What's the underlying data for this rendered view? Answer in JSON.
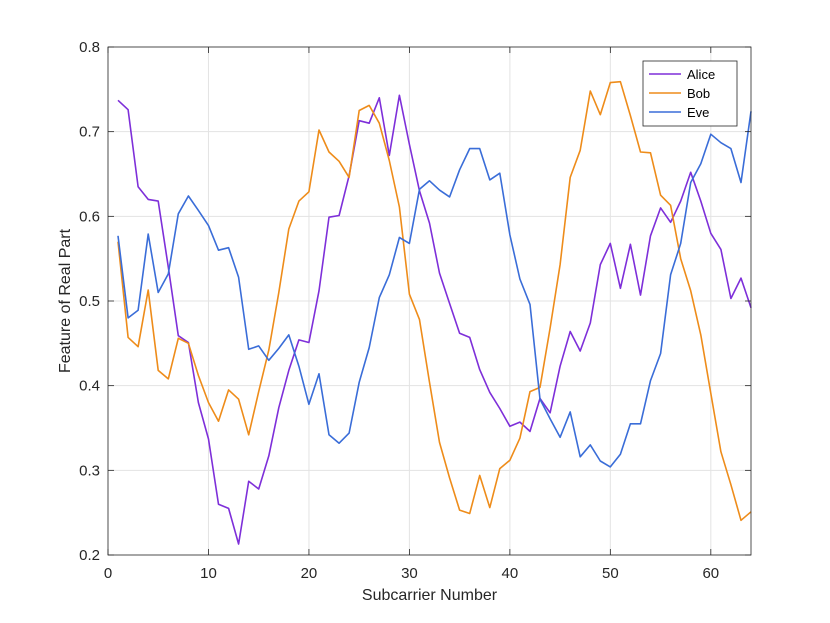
{
  "chart_data": {
    "type": "line",
    "xlabel": "Subcarrier Number",
    "ylabel": "Feature of Real Part",
    "xlim": [
      0,
      64
    ],
    "ylim": [
      0.2,
      0.8
    ],
    "xticks": [
      "0",
      "10",
      "20",
      "30",
      "40",
      "50",
      "60"
    ],
    "yticks": [
      "0.2",
      "0.3",
      "0.4",
      "0.5",
      "0.6",
      "0.7",
      "0.8"
    ],
    "grid": true,
    "legend_position": "top-right",
    "x": [
      1,
      2,
      3,
      4,
      5,
      6,
      7,
      8,
      9,
      10,
      11,
      12,
      13,
      14,
      15,
      16,
      17,
      18,
      19,
      20,
      21,
      22,
      23,
      24,
      25,
      26,
      27,
      28,
      29,
      30,
      31,
      32,
      33,
      34,
      35,
      36,
      37,
      38,
      39,
      40,
      41,
      42,
      43,
      44,
      45,
      46,
      47,
      48,
      49,
      50,
      51,
      52,
      53,
      54,
      55,
      56,
      57,
      58,
      59,
      60,
      61,
      62,
      63,
      64
    ],
    "series": [
      {
        "name": "Alice",
        "color": "#7E2FD9",
        "values": [
          0.737,
          0.726,
          0.635,
          0.62,
          0.618,
          0.54,
          0.459,
          0.451,
          0.38,
          0.337,
          0.26,
          0.255,
          0.213,
          0.287,
          0.278,
          0.317,
          0.374,
          0.418,
          0.454,
          0.451,
          0.512,
          0.599,
          0.601,
          0.648,
          0.713,
          0.71,
          0.74,
          0.672,
          0.743,
          0.685,
          0.63,
          0.592,
          0.533,
          0.497,
          0.462,
          0.457,
          0.419,
          0.392,
          0.373,
          0.352,
          0.357,
          0.346,
          0.385,
          0.368,
          0.423,
          0.464,
          0.441,
          0.474,
          0.543,
          0.568,
          0.515,
          0.567,
          0.507,
          0.577,
          0.61,
          0.593,
          0.618,
          0.652,
          0.618,
          0.58,
          0.561,
          0.503,
          0.527,
          0.492
        ]
      },
      {
        "name": "Bob",
        "color": "#EE8C1A",
        "values": [
          0.57,
          0.457,
          0.446,
          0.513,
          0.418,
          0.408,
          0.456,
          0.45,
          0.412,
          0.38,
          0.358,
          0.395,
          0.384,
          0.342,
          0.393,
          0.442,
          0.51,
          0.585,
          0.618,
          0.629,
          0.702,
          0.676,
          0.665,
          0.646,
          0.725,
          0.731,
          0.71,
          0.666,
          0.611,
          0.508,
          0.478,
          0.404,
          0.333,
          0.291,
          0.253,
          0.249,
          0.294,
          0.256,
          0.302,
          0.312,
          0.338,
          0.393,
          0.398,
          0.468,
          0.543,
          0.646,
          0.678,
          0.748,
          0.72,
          0.758,
          0.759,
          0.719,
          0.676,
          0.675,
          0.625,
          0.613,
          0.55,
          0.512,
          0.46,
          0.391,
          0.322,
          0.283,
          0.241,
          0.251
        ]
      },
      {
        "name": "Eve",
        "color": "#3A6DD8",
        "values": [
          0.577,
          0.48,
          0.489,
          0.579,
          0.51,
          0.532,
          0.603,
          0.624,
          0.607,
          0.589,
          0.56,
          0.563,
          0.528,
          0.443,
          0.447,
          0.43,
          0.444,
          0.46,
          0.423,
          0.378,
          0.414,
          0.342,
          0.332,
          0.344,
          0.404,
          0.445,
          0.504,
          0.531,
          0.575,
          0.568,
          0.632,
          0.642,
          0.631,
          0.623,
          0.655,
          0.68,
          0.68,
          0.643,
          0.651,
          0.578,
          0.526,
          0.496,
          0.384,
          0.361,
          0.339,
          0.369,
          0.316,
          0.33,
          0.311,
          0.304,
          0.319,
          0.355,
          0.355,
          0.406,
          0.438,
          0.531,
          0.568,
          0.64,
          0.662,
          0.697,
          0.687,
          0.68,
          0.64,
          0.724
        ]
      }
    ]
  }
}
